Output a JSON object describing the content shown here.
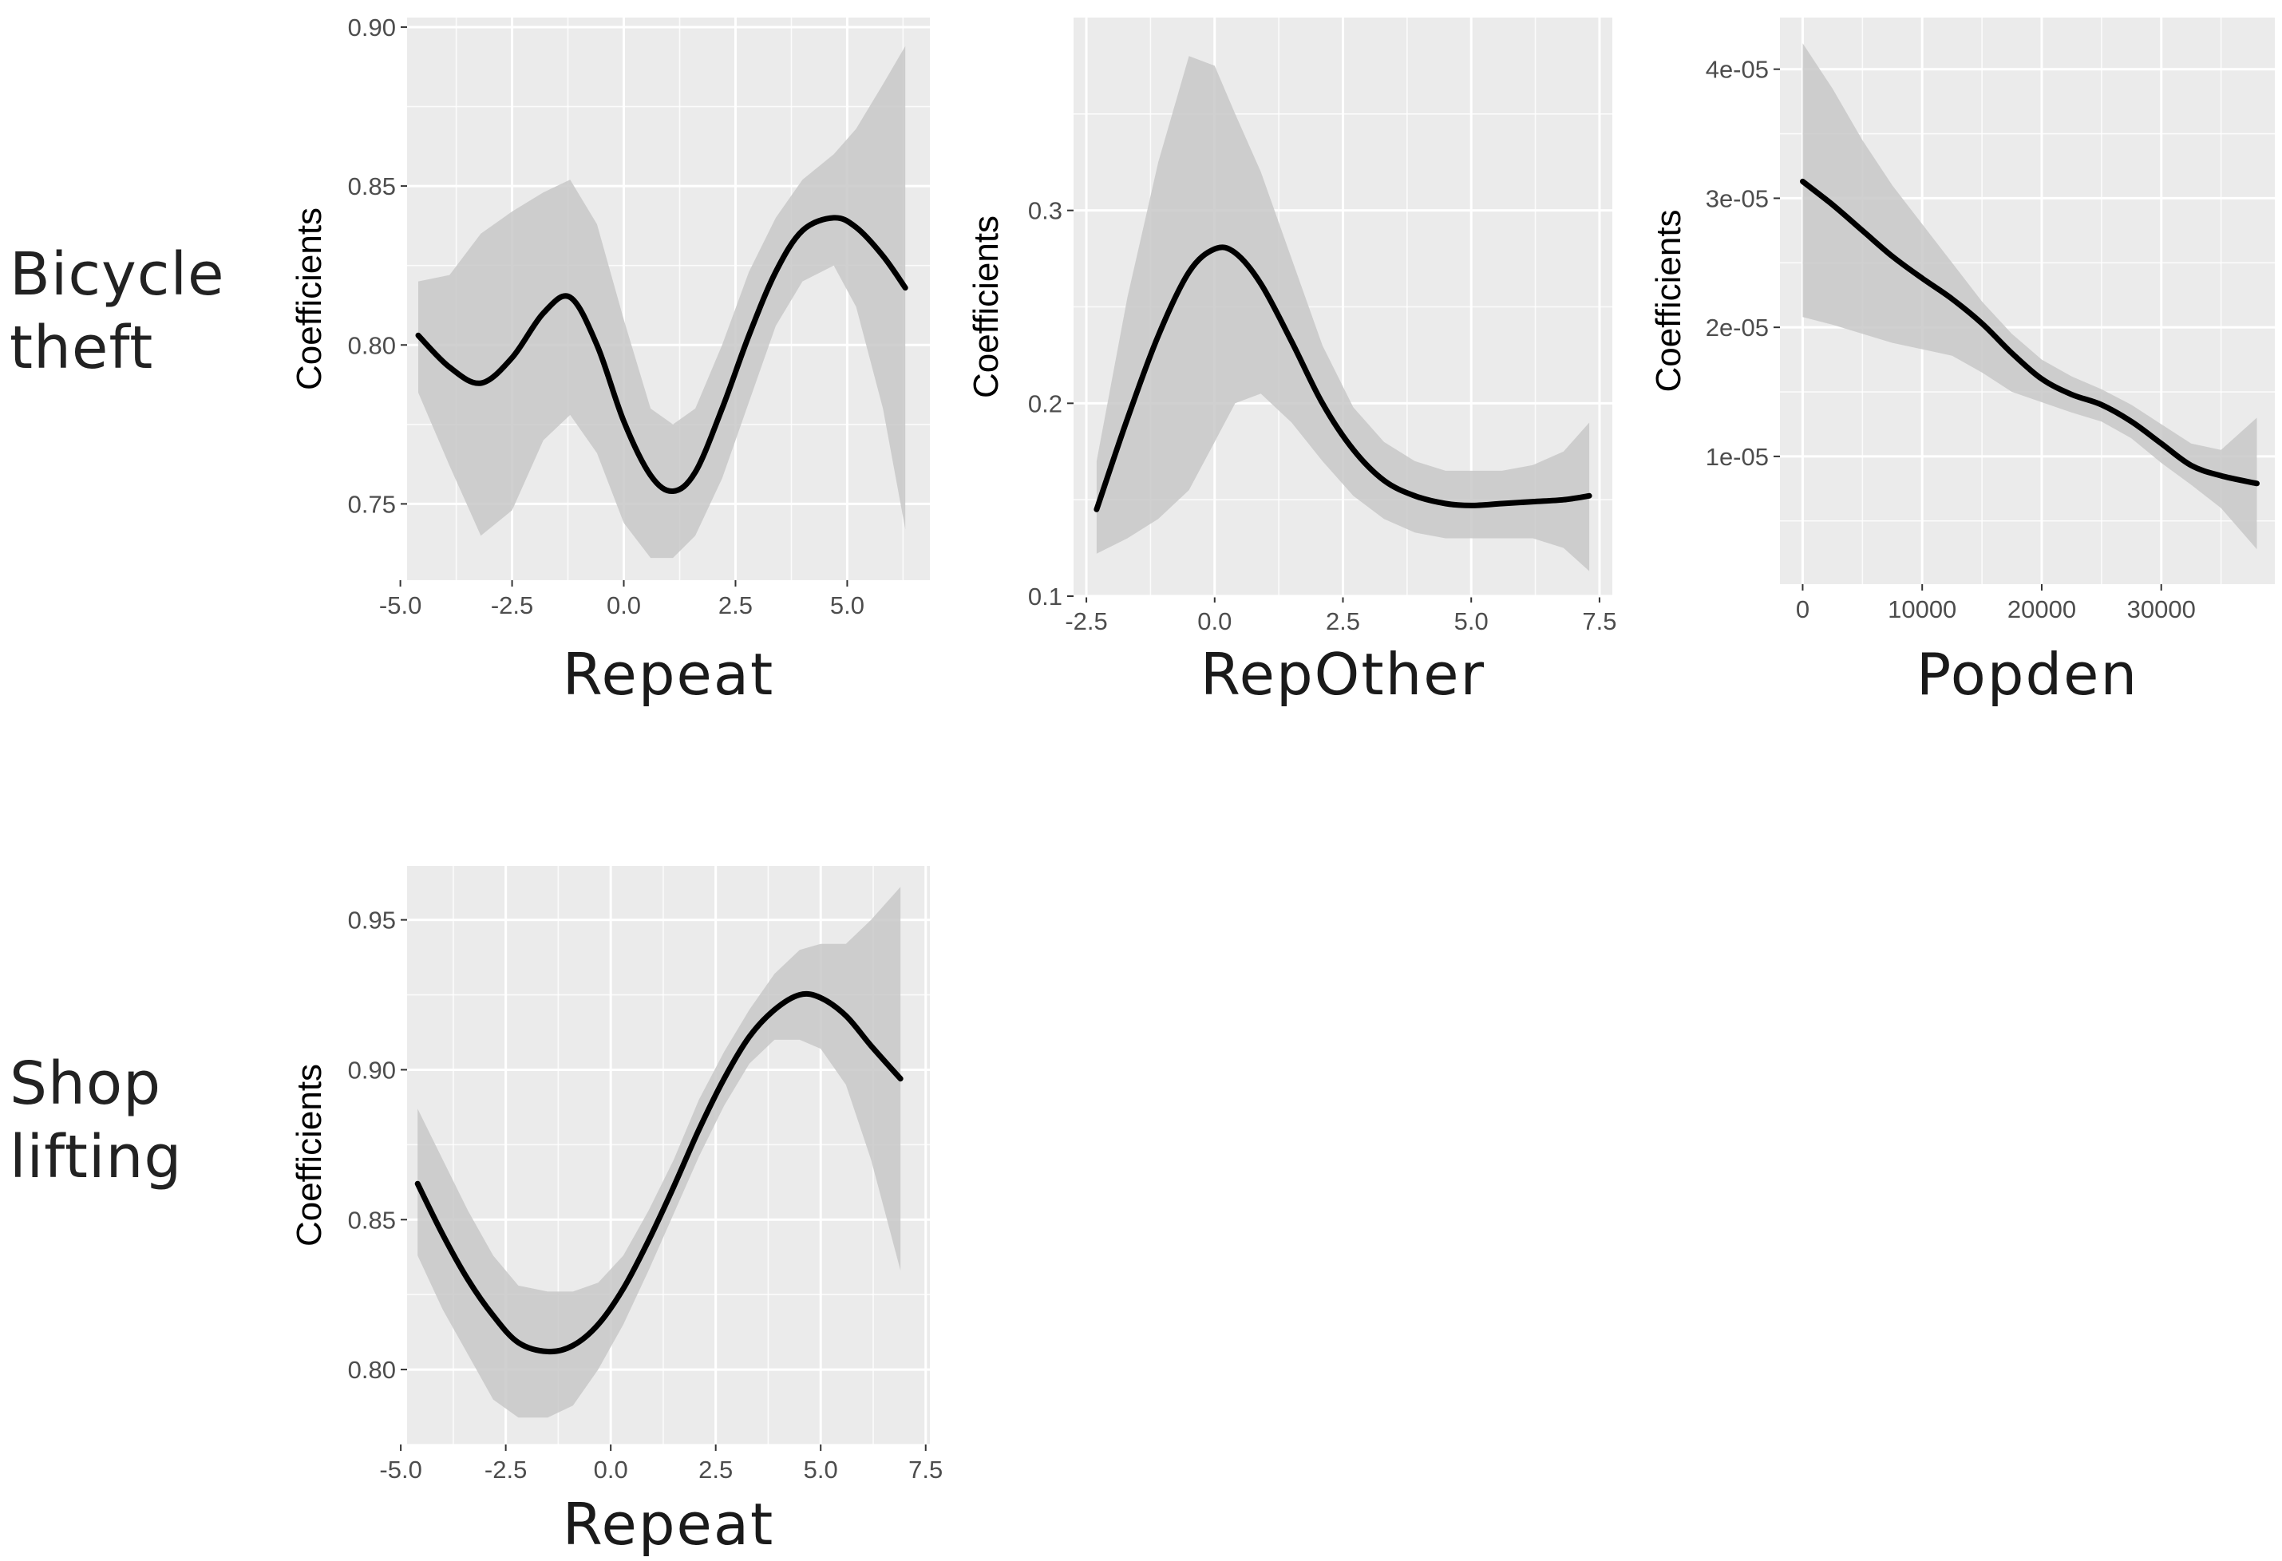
{
  "row_labels": [
    {
      "lines": [
        "Bicycle",
        "theft"
      ]
    },
    {
      "lines": [
        "Shop",
        "lifting"
      ]
    }
  ],
  "colors": {
    "panel_bg": "#ebebeb",
    "grid": "#ffffff",
    "ribbon": "#c8c8c8",
    "line": "#000000",
    "tick_text": "#4d4d4d"
  },
  "chart_data": [
    {
      "type": "line",
      "title": "",
      "row": "Bicycle theft",
      "xlabel": "Repeat",
      "ylabel": "Coefficients",
      "xlim": [
        -4.85,
        6.85
      ],
      "ylim": [
        0.726,
        0.903
      ],
      "xticks": [
        -5.0,
        -2.5,
        0.0,
        2.5,
        5.0
      ],
      "xtick_labels": [
        "-5.0",
        "-2.5",
        "0.0",
        "2.5",
        "5.0"
      ],
      "yticks": [
        0.75,
        0.8,
        0.85,
        0.9
      ],
      "ytick_labels": [
        "0.75",
        "0.80",
        "0.85",
        "0.90"
      ],
      "series": [
        {
          "name": "fit",
          "x": [
            -4.6,
            -3.9,
            -3.2,
            -2.5,
            -1.8,
            -1.2,
            -0.6,
            0.0,
            0.6,
            1.1,
            1.6,
            2.2,
            2.8,
            3.4,
            4.0,
            4.7,
            5.2,
            5.8,
            6.3
          ],
          "values": [
            0.803,
            0.793,
            0.788,
            0.796,
            0.81,
            0.815,
            0.8,
            0.776,
            0.759,
            0.754,
            0.76,
            0.78,
            0.803,
            0.823,
            0.836,
            0.84,
            0.837,
            0.828,
            0.818
          ]
        },
        {
          "name": "upper",
          "x": [
            -4.6,
            -3.9,
            -3.2,
            -2.5,
            -1.8,
            -1.2,
            -0.6,
            0.0,
            0.6,
            1.1,
            1.6,
            2.2,
            2.8,
            3.4,
            4.0,
            4.7,
            5.2,
            5.8,
            6.3
          ],
          "values": [
            0.82,
            0.822,
            0.835,
            0.842,
            0.848,
            0.852,
            0.838,
            0.808,
            0.78,
            0.775,
            0.78,
            0.8,
            0.823,
            0.84,
            0.852,
            0.86,
            0.868,
            0.882,
            0.894
          ]
        },
        {
          "name": "lower",
          "x": [
            -4.6,
            -3.9,
            -3.2,
            -2.5,
            -1.8,
            -1.2,
            -0.6,
            0.0,
            0.6,
            1.1,
            1.6,
            2.2,
            2.8,
            3.4,
            4.0,
            4.7,
            5.2,
            5.8,
            6.3
          ],
          "values": [
            0.785,
            0.762,
            0.74,
            0.748,
            0.77,
            0.778,
            0.766,
            0.744,
            0.733,
            0.733,
            0.74,
            0.758,
            0.782,
            0.806,
            0.82,
            0.825,
            0.812,
            0.78,
            0.742
          ]
        }
      ]
    },
    {
      "type": "line",
      "title": "",
      "row": "Bicycle theft",
      "xlabel": "RepOther",
      "ylabel": "Coefficients",
      "xlim": [
        -2.75,
        7.75
      ],
      "ylim": [
        0.1,
        0.4
      ],
      "xticks": [
        -2.5,
        0.0,
        2.5,
        5.0,
        7.5
      ],
      "xtick_labels": [
        "-2.5",
        "0.0",
        "2.5",
        "5.0",
        "7.5"
      ],
      "yticks": [
        0.1,
        0.2,
        0.3
      ],
      "ytick_labels": [
        "0.1",
        "0.2",
        "0.3"
      ],
      "series": [
        {
          "name": "fit",
          "x": [
            -2.3,
            -1.7,
            -1.1,
            -0.5,
            0.0,
            0.4,
            0.9,
            1.5,
            2.1,
            2.7,
            3.3,
            3.9,
            4.5,
            5.0,
            5.6,
            6.2,
            6.8,
            7.3
          ],
          "values": [
            0.145,
            0.192,
            0.235,
            0.268,
            0.28,
            0.278,
            0.262,
            0.232,
            0.2,
            0.176,
            0.16,
            0.152,
            0.148,
            0.147,
            0.148,
            0.149,
            0.15,
            0.152
          ]
        },
        {
          "name": "upper",
          "x": [
            -2.3,
            -1.7,
            -1.1,
            -0.5,
            0.0,
            0.4,
            0.9,
            1.5,
            2.1,
            2.7,
            3.3,
            3.9,
            4.5,
            5.0,
            5.6,
            6.2,
            6.8,
            7.3
          ],
          "values": [
            0.17,
            0.255,
            0.325,
            0.38,
            0.375,
            0.35,
            0.32,
            0.275,
            0.23,
            0.198,
            0.18,
            0.17,
            0.165,
            0.165,
            0.165,
            0.168,
            0.175,
            0.19
          ]
        },
        {
          "name": "lower",
          "x": [
            -2.3,
            -1.7,
            -1.1,
            -0.5,
            0.0,
            0.4,
            0.9,
            1.5,
            2.1,
            2.7,
            3.3,
            3.9,
            4.5,
            5.0,
            5.6,
            6.2,
            6.8,
            7.3
          ],
          "values": [
            0.122,
            0.13,
            0.14,
            0.155,
            0.18,
            0.2,
            0.205,
            0.19,
            0.17,
            0.152,
            0.14,
            0.133,
            0.13,
            0.13,
            0.13,
            0.13,
            0.125,
            0.113
          ]
        }
      ]
    },
    {
      "type": "line",
      "title": "",
      "row": "Bicycle theft",
      "xlabel": "Popden",
      "ylabel": "Coefficients",
      "xlim": [
        -1900,
        39500
      ],
      "ylim": [
        1e-07,
        4.4e-05
      ],
      "xticks": [
        0,
        10000,
        20000,
        30000
      ],
      "xtick_labels": [
        "0",
        "10000",
        "20000",
        "30000"
      ],
      "yticks": [
        1e-05,
        2e-05,
        3e-05,
        4e-05
      ],
      "ytick_labels": [
        "1e-05",
        "2e-05",
        "3e-05",
        "4e-05"
      ],
      "series": [
        {
          "name": "fit",
          "x": [
            0,
            2500,
            5000,
            7500,
            10000,
            12500,
            15000,
            17500,
            20000,
            22500,
            25000,
            27500,
            30000,
            32500,
            35000,
            38000
          ],
          "values": [
            3.13e-05,
            2.95e-05,
            2.75e-05,
            2.55e-05,
            2.38e-05,
            2.22e-05,
            2.03e-05,
            1.8e-05,
            1.6e-05,
            1.48e-05,
            1.4e-05,
            1.27e-05,
            1.1e-05,
            9.3e-06,
            8.5e-06,
            7.9e-06
          ]
        },
        {
          "name": "upper",
          "x": [
            0,
            2500,
            5000,
            7500,
            10000,
            12500,
            15000,
            17500,
            20000,
            22500,
            25000,
            27500,
            30000,
            32500,
            35000,
            38000
          ],
          "values": [
            4.2e-05,
            3.85e-05,
            3.45e-05,
            3.1e-05,
            2.8e-05,
            2.5e-05,
            2.2e-05,
            1.95e-05,
            1.75e-05,
            1.62e-05,
            1.52e-05,
            1.4e-05,
            1.25e-05,
            1.1e-05,
            1.05e-05,
            1.3e-05
          ]
        },
        {
          "name": "lower",
          "x": [
            0,
            2500,
            5000,
            7500,
            10000,
            12500,
            15000,
            17500,
            20000,
            22500,
            25000,
            27500,
            30000,
            32500,
            35000,
            38000
          ],
          "values": [
            2.08e-05,
            2.02e-05,
            1.95e-05,
            1.88e-05,
            1.83e-05,
            1.78e-05,
            1.65e-05,
            1.5e-05,
            1.42e-05,
            1.34e-05,
            1.27e-05,
            1.14e-05,
            9.5e-06,
            7.8e-06,
            6e-06,
            2.8e-06
          ]
        }
      ]
    },
    {
      "type": "line",
      "title": "",
      "row": "Shop lifting",
      "xlabel": "Repeat",
      "ylabel": "Coefficients",
      "xlim": [
        -4.85,
        7.6
      ],
      "ylim": [
        0.775,
        0.968
      ],
      "xticks": [
        -5.0,
        -2.5,
        0.0,
        2.5,
        5.0,
        7.5
      ],
      "xtick_labels": [
        "-5.0",
        "-2.5",
        "0.0",
        "2.5",
        "5.0",
        "7.5"
      ],
      "yticks": [
        0.8,
        0.85,
        0.9,
        0.95
      ],
      "ytick_labels": [
        "0.80",
        "0.85",
        "0.90",
        "0.95"
      ],
      "series": [
        {
          "name": "fit",
          "x": [
            -4.6,
            -4.0,
            -3.4,
            -2.8,
            -2.2,
            -1.5,
            -0.9,
            -0.3,
            0.3,
            0.9,
            1.5,
            2.1,
            2.7,
            3.3,
            3.9,
            4.5,
            5.0,
            5.6,
            6.2,
            6.9
          ],
          "values": [
            0.862,
            0.845,
            0.83,
            0.818,
            0.809,
            0.806,
            0.808,
            0.815,
            0.827,
            0.843,
            0.861,
            0.88,
            0.897,
            0.911,
            0.92,
            0.925,
            0.924,
            0.918,
            0.908,
            0.897
          ]
        },
        {
          "name": "upper",
          "x": [
            -4.6,
            -4.0,
            -3.4,
            -2.8,
            -2.2,
            -1.5,
            -0.9,
            -0.3,
            0.3,
            0.9,
            1.5,
            2.1,
            2.7,
            3.3,
            3.9,
            4.5,
            5.0,
            5.6,
            6.2,
            6.9
          ],
          "values": [
            0.887,
            0.87,
            0.853,
            0.838,
            0.828,
            0.826,
            0.826,
            0.829,
            0.838,
            0.853,
            0.87,
            0.89,
            0.906,
            0.92,
            0.932,
            0.94,
            0.942,
            0.942,
            0.95,
            0.961
          ]
        },
        {
          "name": "lower",
          "x": [
            -4.6,
            -4.0,
            -3.4,
            -2.8,
            -2.2,
            -1.5,
            -0.9,
            -0.3,
            0.3,
            0.9,
            1.5,
            2.1,
            2.7,
            3.3,
            3.9,
            4.5,
            5.0,
            5.6,
            6.2,
            6.9
          ],
          "values": [
            0.838,
            0.82,
            0.805,
            0.79,
            0.784,
            0.784,
            0.788,
            0.8,
            0.815,
            0.833,
            0.852,
            0.871,
            0.888,
            0.902,
            0.91,
            0.91,
            0.907,
            0.895,
            0.87,
            0.833
          ]
        }
      ]
    }
  ]
}
